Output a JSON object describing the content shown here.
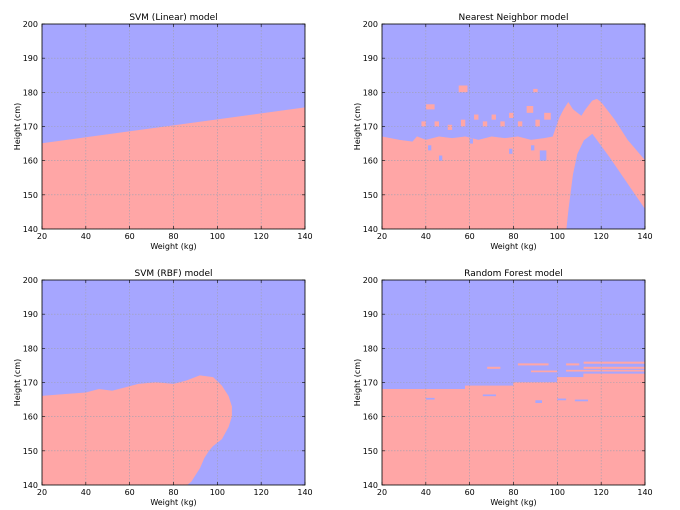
{
  "colors": {
    "class_a": "#a6a6ff",
    "class_b": "#ffa6a6",
    "grid": "#a0a0b0",
    "axis": "#000000"
  },
  "chart_data": [
    {
      "type": "area",
      "title": "SVM (Linear) model",
      "xlabel": "Weight (kg)",
      "ylabel": "Height (cm)",
      "xlim": [
        20,
        140
      ],
      "ylim": [
        140,
        200
      ],
      "xticks": [
        "20",
        "40",
        "60",
        "80",
        "100",
        "120",
        "140"
      ],
      "yticks": [
        "140",
        "150",
        "160",
        "170",
        "180",
        "190",
        "200"
      ],
      "grid": true,
      "series": [
        {
          "fill": "class_b",
          "x": [
            20,
            140
          ],
          "y": [
            165,
            175.5
          ]
        }
      ],
      "patches": []
    },
    {
      "type": "area",
      "title": "Nearest Neighbor model",
      "xlabel": "Weight (kg)",
      "ylabel": "Height (cm)",
      "xlim": [
        20,
        140
      ],
      "ylim": [
        140,
        200
      ],
      "xticks": [
        "20",
        "40",
        "60",
        "80",
        "100",
        "120",
        "140"
      ],
      "yticks": [
        "140",
        "150",
        "160",
        "170",
        "180",
        "190",
        "200"
      ],
      "grid": true,
      "series": [
        {
          "fill": "class_b",
          "x": [
            20,
            28,
            34,
            36,
            40,
            46,
            52,
            58,
            64,
            70,
            76,
            82,
            88,
            94,
            98,
            101,
            103,
            105,
            107,
            109,
            111,
            113,
            116,
            118,
            120,
            126,
            132,
            140,
            140,
            124,
            116,
            112,
            109,
            107,
            106,
            105,
            104
          ],
          "y": [
            167,
            166,
            165.5,
            167,
            166,
            167,
            166.5,
            167,
            166,
            167,
            166.5,
            167,
            166,
            166.5,
            167,
            172.5,
            175,
            177,
            175,
            174,
            173,
            175,
            177.5,
            178,
            177,
            172,
            166,
            160,
            146,
            161,
            168,
            166,
            162,
            156,
            151,
            146,
            140
          ]
        }
      ],
      "patches": [
        {
          "fill": "class_a",
          "x": 41,
          "y": 163,
          "w": 1.5,
          "h": 1.5
        },
        {
          "fill": "class_a",
          "x": 46,
          "y": 160,
          "w": 1.5,
          "h": 1.5
        },
        {
          "fill": "class_a",
          "x": 60,
          "y": 165,
          "w": 1.5,
          "h": 1.5
        },
        {
          "fill": "class_a",
          "x": 78,
          "y": 162,
          "w": 1.5,
          "h": 1.5
        },
        {
          "fill": "class_a",
          "x": 88,
          "y": 163,
          "w": 1.5,
          "h": 1.5
        },
        {
          "fill": "class_a",
          "x": 92,
          "y": 160,
          "w": 3,
          "h": 3
        },
        {
          "fill": "class_b",
          "x": 40,
          "y": 175,
          "w": 4,
          "h": 1.5
        },
        {
          "fill": "class_b",
          "x": 55,
          "y": 180,
          "w": 4,
          "h": 2
        },
        {
          "fill": "class_b",
          "x": 48,
          "y": 153,
          "w": 2,
          "h": 1
        },
        {
          "fill": "class_b",
          "x": 38,
          "y": 170,
          "w": 2,
          "h": 1.5
        },
        {
          "fill": "class_b",
          "x": 44,
          "y": 170,
          "w": 2,
          "h": 1.5
        },
        {
          "fill": "class_b",
          "x": 50,
          "y": 169,
          "w": 2,
          "h": 1.5
        },
        {
          "fill": "class_b",
          "x": 56,
          "y": 170,
          "w": 2,
          "h": 2
        },
        {
          "fill": "class_b",
          "x": 62,
          "y": 172,
          "w": 2,
          "h": 1.5
        },
        {
          "fill": "class_b",
          "x": 66,
          "y": 170,
          "w": 2,
          "h": 1.5
        },
        {
          "fill": "class_b",
          "x": 70,
          "y": 172,
          "w": 2,
          "h": 1.5
        },
        {
          "fill": "class_b",
          "x": 74,
          "y": 170,
          "w": 2,
          "h": 1.5
        },
        {
          "fill": "class_b",
          "x": 78,
          "y": 172.5,
          "w": 2,
          "h": 1.5
        },
        {
          "fill": "class_b",
          "x": 82,
          "y": 170,
          "w": 2,
          "h": 1.5
        },
        {
          "fill": "class_b",
          "x": 86,
          "y": 174,
          "w": 3,
          "h": 2
        },
        {
          "fill": "class_b",
          "x": 90,
          "y": 170,
          "w": 2,
          "h": 2
        },
        {
          "fill": "class_b",
          "x": 94,
          "y": 172,
          "w": 3,
          "h": 2
        },
        {
          "fill": "class_b",
          "x": 89,
          "y": 180,
          "w": 2,
          "h": 1
        },
        {
          "fill": "class_b",
          "x": 53,
          "y": 162,
          "w": 2,
          "h": 1
        },
        {
          "fill": "class_b",
          "x": 66,
          "y": 162,
          "w": 2,
          "h": 1
        }
      ]
    },
    {
      "type": "area",
      "title": "SVM (RBF) model",
      "xlabel": "Weight (kg)",
      "ylabel": "Height (cm)",
      "xlim": [
        20,
        140
      ],
      "ylim": [
        140,
        200
      ],
      "xticks": [
        "20",
        "40",
        "60",
        "80",
        "100",
        "120",
        "140"
      ],
      "yticks": [
        "140",
        "150",
        "160",
        "170",
        "180",
        "190",
        "200"
      ],
      "grid": true,
      "series": [
        {
          "fill": "class_b",
          "x": [
            20,
            30,
            40,
            46,
            52,
            58,
            64,
            72,
            80,
            86,
            92,
            98,
            102,
            105,
            106.5,
            106.5,
            105,
            102,
            98,
            96,
            94,
            92,
            90,
            88,
            86
          ],
          "y": [
            166,
            166.5,
            167,
            168,
            167.5,
            168.5,
            169.5,
            170,
            169.5,
            170.5,
            172,
            171.5,
            169,
            166,
            163,
            160,
            157,
            153.5,
            151.5,
            150,
            148,
            145,
            143,
            141,
            140
          ]
        }
      ],
      "patches": []
    },
    {
      "type": "area",
      "title": "Random Forest model",
      "xlabel": "Weight (kg)",
      "ylabel": "Height (cm)",
      "xlim": [
        20,
        140
      ],
      "ylim": [
        140,
        200
      ],
      "xticks": [
        "20",
        "40",
        "60",
        "80",
        "100",
        "120",
        "140"
      ],
      "yticks": [
        "140",
        "150",
        "160",
        "170",
        "180",
        "190",
        "200"
      ],
      "grid": true,
      "series": [
        {
          "fill": "class_b",
          "x": [
            20,
            58,
            58,
            80,
            80,
            100,
            100,
            112,
            112,
            140
          ],
          "y": [
            168,
            168,
            169,
            169,
            170,
            170,
            171.5,
            171.5,
            172.5,
            172.5
          ]
        }
      ],
      "patches": [
        {
          "fill": "class_b",
          "x": 68,
          "y": 174,
          "w": 6,
          "h": 0.6
        },
        {
          "fill": "class_b",
          "x": 82,
          "y": 175,
          "w": 14,
          "h": 0.6
        },
        {
          "fill": "class_b",
          "x": 104,
          "y": 175,
          "w": 6,
          "h": 0.6
        },
        {
          "fill": "class_b",
          "x": 112,
          "y": 175.5,
          "w": 28,
          "h": 0.6
        },
        {
          "fill": "class_b",
          "x": 112,
          "y": 174,
          "w": 28,
          "h": 0.6
        },
        {
          "fill": "class_b",
          "x": 104,
          "y": 173.2,
          "w": 36,
          "h": 0.5
        },
        {
          "fill": "class_b",
          "x": 88,
          "y": 173,
          "w": 12,
          "h": 0.5
        },
        {
          "fill": "class_a",
          "x": 90,
          "y": 164,
          "w": 3,
          "h": 0.8
        },
        {
          "fill": "class_a",
          "x": 40,
          "y": 165,
          "w": 4,
          "h": 0.5
        },
        {
          "fill": "class_a",
          "x": 100,
          "y": 164.8,
          "w": 4,
          "h": 0.5
        },
        {
          "fill": "class_a",
          "x": 66,
          "y": 166,
          "w": 6,
          "h": 0.5
        },
        {
          "fill": "class_a",
          "x": 108,
          "y": 164.5,
          "w": 6,
          "h": 0.5
        }
      ]
    }
  ]
}
